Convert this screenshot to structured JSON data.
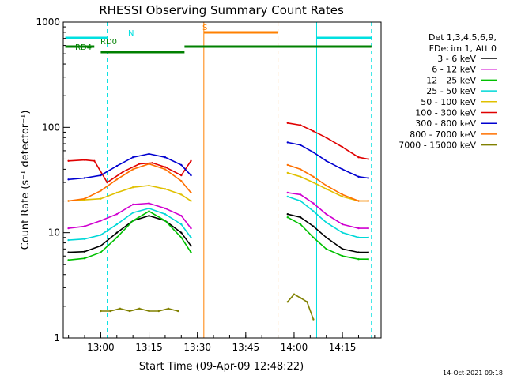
{
  "chart_data": {
    "type": "line",
    "title": "RHESSI Observing Summary Count Rates",
    "xlabel": "Start Time (09-Apr-09 12:48:22)",
    "ylabel": "Count Rate (s⁻¹ detector⁻¹)",
    "y_scale": "log",
    "ylim": [
      1,
      1000
    ],
    "xlim_minutes_labels": [
      "13:00",
      "13:15",
      "13:30",
      "13:45",
      "14:00",
      "14:15"
    ],
    "x_ticks": [
      {
        "label": "13:00",
        "t": "13:00"
      },
      {
        "label": "13:15",
        "t": "13:15"
      },
      {
        "label": "13:30",
        "t": "13:30"
      },
      {
        "label": "13:45",
        "t": "13:45"
      },
      {
        "label": "14:00",
        "t": "14:00"
      },
      {
        "label": "14:15",
        "t": "14:15"
      }
    ],
    "y_ticks": [
      {
        "label": "1",
        "value": 1
      },
      {
        "label": "10",
        "value": 10
      },
      {
        "label": "100",
        "value": 100
      },
      {
        "label": "1000",
        "value": 1000
      }
    ],
    "legend_title_lines": [
      "Det 1,3,4,5,6,9,",
      "FDecim 1, Att 0"
    ],
    "legend_position": "right",
    "series": [
      {
        "name": "3 - 6 keV",
        "color": "#000000",
        "segments": [
          {
            "x": [
              "12:50",
              "12:55",
              "13:00",
              "13:05",
              "13:10",
              "13:15",
              "13:20",
              "13:25",
              "13:28"
            ],
            "y": [
              6.5,
              6.6,
              7.5,
              10,
              13,
              14.5,
              13,
              10,
              7.5
            ]
          },
          {
            "x": [
              "13:58",
              "14:02",
              "14:06",
              "14:10",
              "14:15",
              "14:20",
              "14:23"
            ],
            "y": [
              15,
              14,
              11.5,
              9,
              7,
              6.5,
              6.5
            ]
          }
        ]
      },
      {
        "name": "6 - 12 keV",
        "color": "#d000d0",
        "segments": [
          {
            "x": [
              "12:50",
              "12:55",
              "13:00",
              "13:05",
              "13:10",
              "13:15",
              "13:20",
              "13:25",
              "13:28"
            ],
            "y": [
              11,
              11.5,
              13,
              15,
              18.5,
              19,
              17,
              14.5,
              11
            ]
          },
          {
            "x": [
              "13:58",
              "14:02",
              "14:06",
              "14:10",
              "14:15",
              "14:20",
              "14:23"
            ],
            "y": [
              24,
              23,
              19,
              15,
              12,
              11,
              11
            ]
          }
        ]
      },
      {
        "name": "12 - 25 keV",
        "color": "#00c000",
        "segments": [
          {
            "x": [
              "12:50",
              "12:55",
              "13:00",
              "13:05",
              "13:10",
              "13:15",
              "13:20",
              "13:25",
              "13:28"
            ],
            "y": [
              5.5,
              5.7,
              6.5,
              9,
              13,
              16,
              13,
              9,
              6.5
            ]
          },
          {
            "x": [
              "13:58",
              "14:02",
              "14:06",
              "14:10",
              "14:15",
              "14:20",
              "14:23"
            ],
            "y": [
              14,
              12,
              9,
              7,
              6,
              5.6,
              5.6
            ]
          }
        ]
      },
      {
        "name": "25 - 50 keV",
        "color": "#00d8d8",
        "segments": [
          {
            "x": [
              "12:50",
              "12:55",
              "13:00",
              "13:05",
              "13:10",
              "13:15",
              "13:20",
              "13:25",
              "13:28"
            ],
            "y": [
              8.5,
              8.7,
              9.5,
              12,
              15.5,
              17,
              15,
              12,
              9
            ]
          },
          {
            "x": [
              "13:58",
              "14:02",
              "14:06",
              "14:10",
              "14:15",
              "14:20",
              "14:23"
            ],
            "y": [
              22,
              20,
              16,
              12.5,
              10,
              9,
              9
            ]
          }
        ]
      },
      {
        "name": "50 - 100 keV",
        "color": "#e0c000",
        "segments": [
          {
            "x": [
              "12:50",
              "12:55",
              "13:00",
              "13:05",
              "13:10",
              "13:15",
              "13:20",
              "13:25",
              "13:28"
            ],
            "y": [
              20,
              20.5,
              21,
              24,
              27,
              28,
              26,
              23,
              20
            ]
          },
          {
            "x": [
              "13:58",
              "14:02",
              "14:06",
              "14:10",
              "14:15",
              "14:20",
              "14:23"
            ],
            "y": [
              37,
              34,
              30,
              26,
              22,
              20,
              20
            ]
          }
        ]
      },
      {
        "name": "100 - 300 keV",
        "color": "#e00000",
        "segments": [
          {
            "x": [
              "12:50",
              "12:55",
              "12:58",
              "13:02",
              "13:07",
              "13:12",
              "13:16",
              "13:20",
              "13:25",
              "13:28"
            ],
            "y": [
              48,
              49,
              48,
              30,
              38,
              45,
              46,
              42,
              35,
              48
            ]
          },
          {
            "x": [
              "13:58",
              "14:02",
              "14:06",
              "14:10",
              "14:15",
              "14:20",
              "14:23"
            ],
            "y": [
              110,
              105,
              92,
              80,
              65,
              52,
              50
            ]
          }
        ]
      },
      {
        "name": "300 - 800 keV",
        "color": "#0000d0",
        "segments": [
          {
            "x": [
              "12:50",
              "12:55",
              "13:00",
              "13:05",
              "13:10",
              "13:15",
              "13:20",
              "13:25",
              "13:28"
            ],
            "y": [
              32,
              33,
              35,
              43,
              52,
              56,
              52,
              44,
              35
            ]
          },
          {
            "x": [
              "13:58",
              "14:02",
              "14:06",
              "14:10",
              "14:15",
              "14:20",
              "14:23"
            ],
            "y": [
              72,
              68,
              58,
              48,
              40,
              34,
              33
            ]
          }
        ]
      },
      {
        "name": "800 - 7000 keV",
        "color": "#ff7000",
        "segments": [
          {
            "x": [
              "12:50",
              "12:55",
              "13:00",
              "13:05",
              "13:10",
              "13:15",
              "13:20",
              "13:25",
              "13:28"
            ],
            "y": [
              20,
              21,
              25,
              32,
              40,
              45,
              40,
              31,
              24
            ]
          },
          {
            "x": [
              "13:58",
              "14:02",
              "14:06",
              "14:10",
              "14:15",
              "14:20",
              "14:23"
            ],
            "y": [
              44,
              40,
              34,
              28,
              23,
              20,
              20
            ]
          }
        ]
      },
      {
        "name": "7000 - 15000 keV",
        "color": "#808000",
        "segments": [
          {
            "x": [
              "13:00",
              "13:03",
              "13:06",
              "13:09",
              "13:12",
              "13:15",
              "13:18",
              "13:21",
              "13:24"
            ],
            "y": [
              1.8,
              1.8,
              1.9,
              1.8,
              1.9,
              1.8,
              1.8,
              1.9,
              1.8
            ]
          },
          {
            "x": [
              "13:58",
              "14:00",
              "14:02",
              "14:04",
              "14:06"
            ],
            "y": [
              2.2,
              2.6,
              2.4,
              2.2,
              1.5
            ]
          }
        ]
      }
    ],
    "flag_bars": [
      {
        "label": "N",
        "color": "#00e0e0",
        "segments": [
          [
            "12:49",
            "13:02"
          ],
          [
            "14:07",
            "14:24"
          ]
        ]
      },
      {
        "label": "S",
        "color": "#ff8000",
        "segments": [
          [
            "13:32",
            "13:55"
          ]
        ]
      },
      {
        "label": "RD0",
        "color": "#008000",
        "segments": [
          [
            "12:49",
            "12:58"
          ],
          [
            "13:26",
            "14:24"
          ]
        ]
      },
      {
        "label": "RD4",
        "color": "#008000",
        "segments": [
          [
            "13:00",
            "13:26"
          ]
        ]
      }
    ],
    "vertical_lines": [
      {
        "t": "13:02",
        "color": "#00e0e0",
        "style": "dashed"
      },
      {
        "t": "13:32",
        "color": "#ff8000",
        "style": "solid"
      },
      {
        "t": "13:55",
        "color": "#ff8000",
        "style": "dashed"
      },
      {
        "t": "14:07",
        "color": "#00e0e0",
        "style": "solid"
      },
      {
        "t": "14:24",
        "color": "#00e0e0",
        "style": "dashed"
      }
    ]
  },
  "footer": {
    "timestamp": "14-Oct-2021 09:18"
  }
}
